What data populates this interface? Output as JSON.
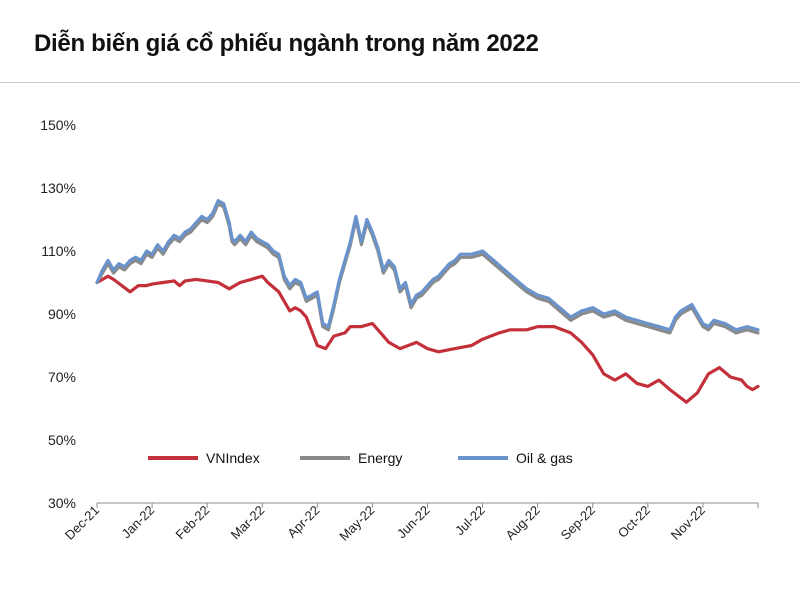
{
  "title": "Diễn biến giá cổ phiếu ngành trong năm 2022",
  "colors": {
    "vnindex": "#c4303a",
    "energy": "#8a8a8a",
    "oilgas": "#6a93cc",
    "axis": "#8c8c8c",
    "text": "#222222"
  },
  "chart_data": {
    "type": "line",
    "title": "Diễn biến giá cổ phiếu ngành trong năm 2022",
    "xlabel": "",
    "ylabel": "",
    "ylim": [
      30,
      150
    ],
    "y_ticks": [
      30,
      50,
      70,
      90,
      110,
      130,
      150
    ],
    "y_tick_labels": [
      "30%",
      "50%",
      "70%",
      "90%",
      "110%",
      "130%",
      "150%"
    ],
    "x_range": [
      0,
      12
    ],
    "x_ticks": [
      0,
      1,
      2,
      3,
      4,
      5,
      6,
      7,
      8,
      9,
      10,
      11
    ],
    "x_tick_labels": [
      "Dec-21",
      "Jan-22",
      "Feb-22",
      "Mar-22",
      "Apr-22",
      "May-22",
      "Jun-22",
      "Jul-22",
      "Aug-22",
      "Sep-22",
      "Oct-22",
      "Nov-22"
    ],
    "legend": [
      "VNIndex",
      "Energy",
      "Oil & gas"
    ],
    "legend_position": "lower-center",
    "grid": false,
    "series": [
      {
        "name": "VNIndex",
        "x": [
          0,
          0.1,
          0.2,
          0.3,
          0.45,
          0.6,
          0.75,
          0.9,
          1.0,
          1.2,
          1.4,
          1.5,
          1.6,
          1.8,
          2.0,
          2.2,
          2.4,
          2.6,
          2.8,
          3.0,
          3.1,
          3.3,
          3.5,
          3.6,
          3.7,
          3.8,
          4.0,
          4.15,
          4.3,
          4.5,
          4.6,
          4.8,
          5.0,
          5.3,
          5.5,
          5.8,
          6.0,
          6.2,
          6.5,
          6.8,
          7.0,
          7.3,
          7.5,
          7.8,
          8.0,
          8.3,
          8.6,
          8.8,
          9.0,
          9.2,
          9.4,
          9.6,
          9.8,
          10.0,
          10.2,
          10.4,
          10.55,
          10.7,
          10.9,
          11.1,
          11.3,
          11.5,
          11.7,
          11.8,
          11.9,
          12.0
        ],
        "values": [
          100,
          101,
          102,
          101,
          99,
          97,
          99,
          99,
          99.5,
          100,
          100.5,
          99,
          100.5,
          101,
          100.5,
          100,
          98,
          100,
          101,
          102,
          100,
          97,
          91,
          92,
          91,
          89,
          80,
          79,
          83,
          84,
          86,
          86,
          87,
          81,
          79,
          81,
          79,
          78,
          79,
          80,
          82,
          84,
          85,
          85,
          86,
          86,
          84,
          81,
          77,
          71,
          69,
          71,
          68,
          67,
          69,
          66,
          64,
          62,
          65,
          71,
          73,
          70,
          69,
          67,
          66,
          67
        ]
      },
      {
        "name": "Energy",
        "x": [
          0,
          0.1,
          0.2,
          0.3,
          0.4,
          0.5,
          0.6,
          0.7,
          0.8,
          0.9,
          1.0,
          1.1,
          1.2,
          1.3,
          1.4,
          1.5,
          1.6,
          1.7,
          1.8,
          1.9,
          2.0,
          2.1,
          2.2,
          2.3,
          2.4,
          2.45,
          2.5,
          2.6,
          2.7,
          2.8,
          2.9,
          3.0,
          3.1,
          3.2,
          3.3,
          3.4,
          3.5,
          3.6,
          3.7,
          3.8,
          3.9,
          4.0,
          4.1,
          4.2,
          4.3,
          4.4,
          4.5,
          4.6,
          4.7,
          4.8,
          4.9,
          5.0,
          5.1,
          5.2,
          5.3,
          5.4,
          5.5,
          5.6,
          5.7,
          5.8,
          5.9,
          6.0,
          6.1,
          6.2,
          6.3,
          6.4,
          6.5,
          6.6,
          6.8,
          7.0,
          7.2,
          7.4,
          7.6,
          7.8,
          8.0,
          8.2,
          8.4,
          8.6,
          8.8,
          9.0,
          9.2,
          9.4,
          9.6,
          9.8,
          10.0,
          10.2,
          10.4,
          10.5,
          10.6,
          10.8,
          11.0,
          11.1,
          11.2,
          11.4,
          11.6,
          11.8,
          12.0
        ],
        "values": [
          100,
          103,
          106,
          103,
          105,
          104,
          106,
          107,
          106,
          109,
          108,
          111,
          109,
          112,
          114,
          113,
          115,
          116,
          118,
          120,
          119,
          121,
          125,
          124,
          118,
          113,
          112,
          114,
          112,
          115,
          113,
          112,
          111,
          109,
          108,
          101,
          98,
          100,
          99,
          94,
          95,
          96,
          86,
          85,
          92,
          100,
          106,
          112,
          120,
          112,
          119,
          115,
          110,
          103,
          106,
          104,
          97,
          99,
          92,
          95,
          96,
          98,
          100,
          101,
          103,
          105,
          106,
          108,
          108,
          109,
          106,
          103,
          100,
          97,
          95,
          94,
          91,
          88,
          90,
          91,
          89,
          90,
          88,
          87,
          86,
          85,
          84,
          88,
          90,
          92,
          86,
          85,
          87,
          86,
          84,
          85,
          84
        ]
      },
      {
        "name": "Oil & gas",
        "x": [
          0,
          0.1,
          0.2,
          0.3,
          0.4,
          0.5,
          0.6,
          0.7,
          0.8,
          0.9,
          1.0,
          1.1,
          1.2,
          1.3,
          1.4,
          1.5,
          1.6,
          1.7,
          1.8,
          1.9,
          2.0,
          2.1,
          2.2,
          2.3,
          2.4,
          2.45,
          2.5,
          2.6,
          2.7,
          2.8,
          2.9,
          3.0,
          3.1,
          3.2,
          3.3,
          3.4,
          3.5,
          3.6,
          3.7,
          3.8,
          3.9,
          4.0,
          4.1,
          4.2,
          4.3,
          4.4,
          4.5,
          4.6,
          4.7,
          4.8,
          4.9,
          5.0,
          5.1,
          5.2,
          5.3,
          5.4,
          5.5,
          5.6,
          5.7,
          5.8,
          5.9,
          6.0,
          6.1,
          6.2,
          6.3,
          6.4,
          6.5,
          6.6,
          6.8,
          7.0,
          7.2,
          7.4,
          7.6,
          7.8,
          8.0,
          8.2,
          8.4,
          8.6,
          8.8,
          9.0,
          9.2,
          9.4,
          9.6,
          9.8,
          10.0,
          10.2,
          10.4,
          10.5,
          10.6,
          10.8,
          11.0,
          11.1,
          11.2,
          11.4,
          11.6,
          11.8,
          12.0
        ],
        "values": [
          100,
          104,
          107,
          104,
          106,
          105,
          107,
          108,
          107,
          110,
          109,
          112,
          110,
          113,
          115,
          114,
          116,
          117,
          119,
          121,
          120,
          122,
          126,
          125,
          119,
          114,
          113,
          115,
          113,
          116,
          114,
          113,
          112,
          110,
          109,
          102,
          99,
          101,
          100,
          95,
          96,
          97,
          87,
          86,
          93,
          101,
          107,
          113,
          121,
          113,
          120,
          116,
          111,
          104,
          107,
          105,
          98,
          100,
          93,
          96,
          97,
          99,
          101,
          102,
          104,
          106,
          107,
          109,
          109,
          110,
          107,
          104,
          101,
          98,
          96,
          95,
          92,
          89,
          91,
          92,
          90,
          91,
          89,
          88,
          87,
          86,
          85,
          89,
          91,
          93,
          87,
          86,
          88,
          87,
          85,
          86,
          85
        ]
      }
    ]
  }
}
